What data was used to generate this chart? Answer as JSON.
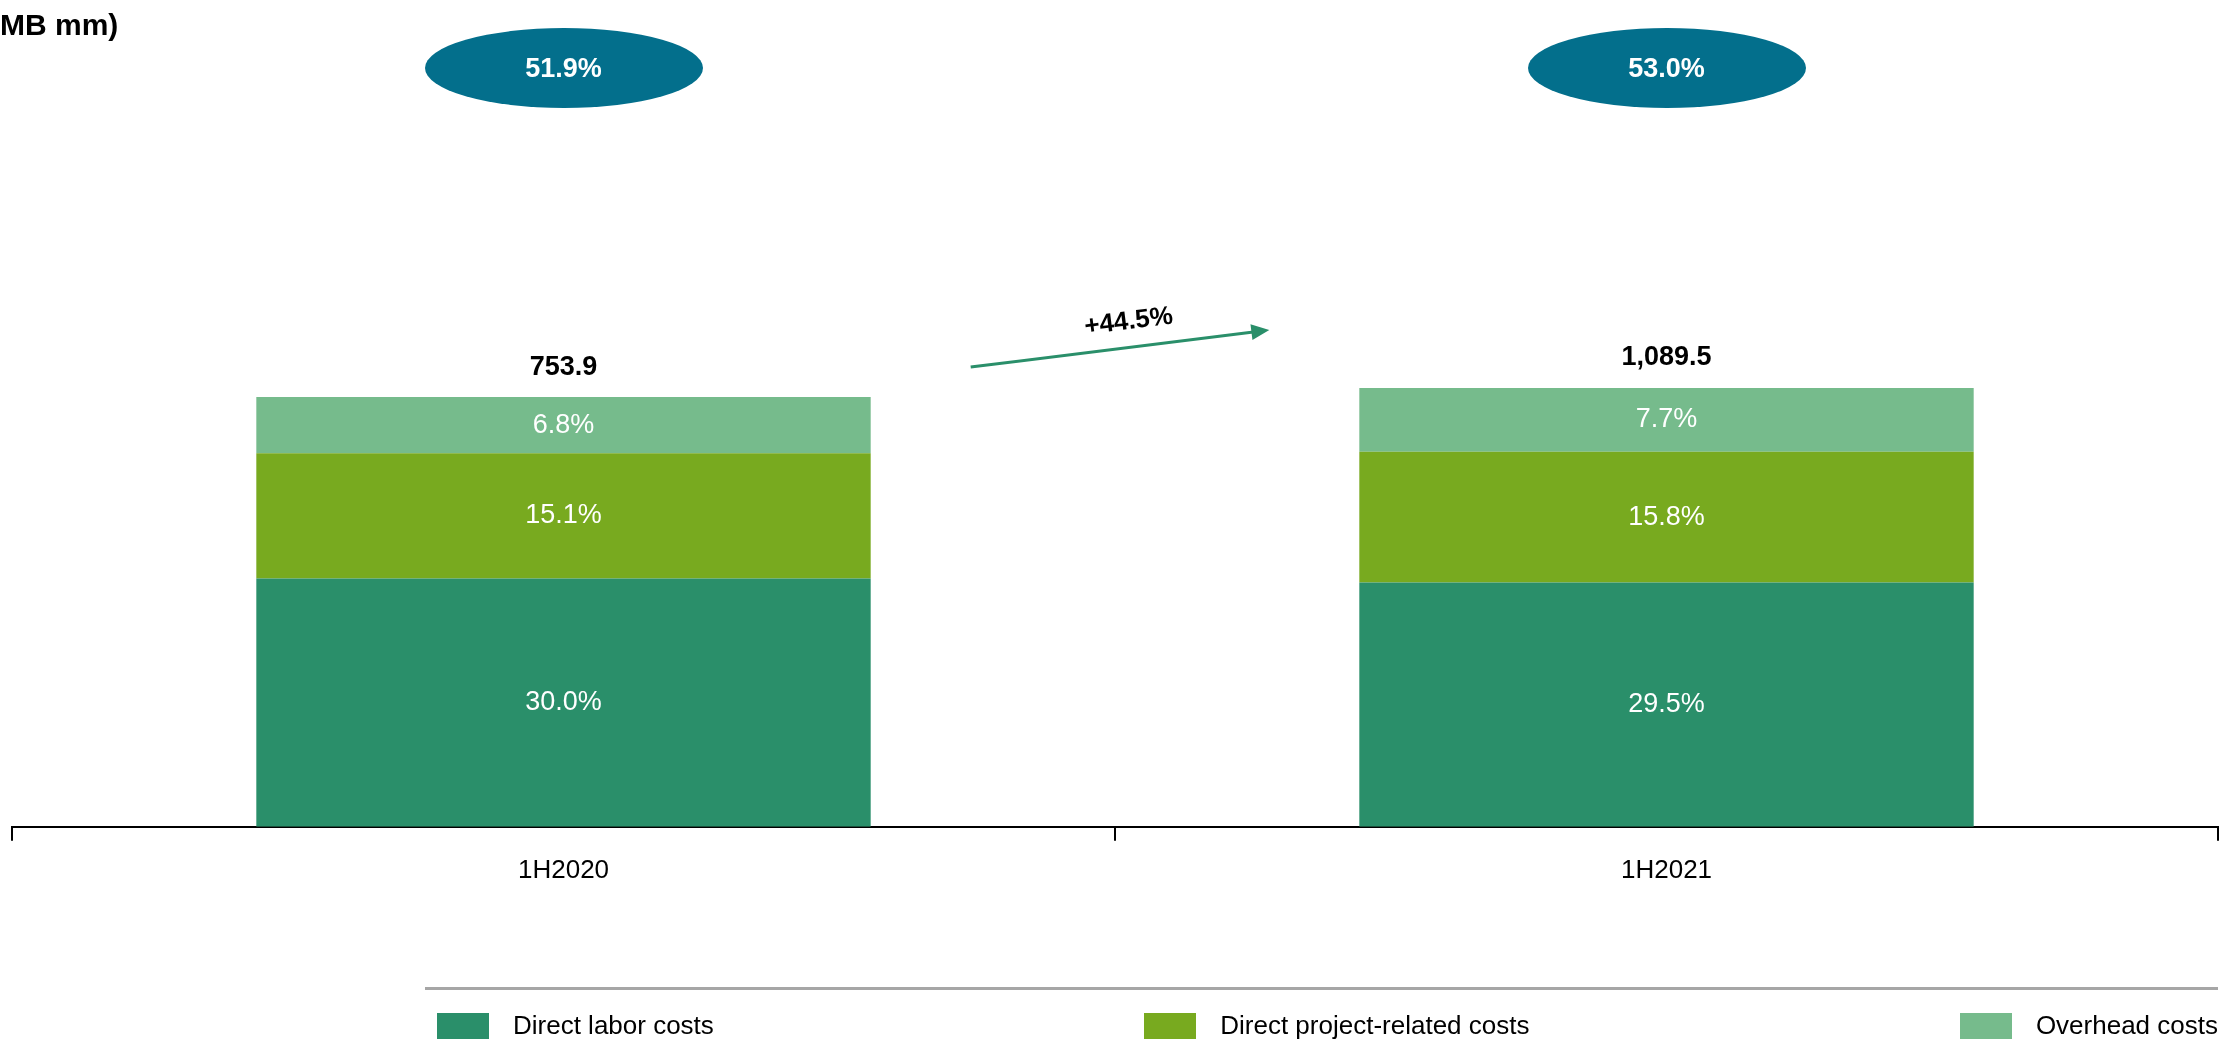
{
  "chart_data": {
    "type": "bar",
    "title": "MB mm)",
    "stacked": true,
    "categories": [
      "1H2020",
      "1H2021"
    ],
    "series": [
      {
        "name": "Direct labor costs",
        "color": "#2a8f6a",
        "values": [
          30.0,
          29.5
        ],
        "value_labels": [
          "30.0%",
          "29.5%"
        ]
      },
      {
        "name": "Direct project-related costs",
        "color": "#78aa1f",
        "values": [
          15.1,
          15.8
        ],
        "value_labels": [
          "15.1%",
          "15.8%"
        ]
      },
      {
        "name": "Overhead costs",
        "color": "#76bb8c",
        "values": [
          6.8,
          7.7
        ],
        "value_labels": [
          "6.8%",
          "7.7%"
        ]
      }
    ],
    "tick_labels": "x",
    "grid": false,
    "legend": "bottom",
    "annotations": [
      "51.9%",
      "53.0%",
      "753.9",
      "1,089.5",
      "+44.5%"
    ]
  }
}
